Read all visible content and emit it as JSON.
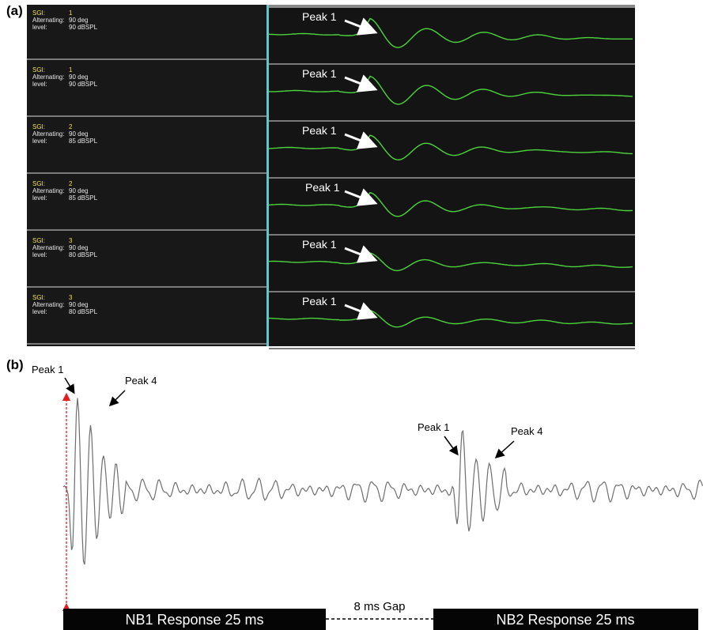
{
  "labels": {
    "a": "(a)",
    "b": "(b)"
  },
  "panel_a": {
    "rows": [
      {
        "sgi_label": "SGI:",
        "sgi": "1",
        "alt_label": "Alternating:",
        "alt": "90 deg",
        "level_label": "level:",
        "level": "90 dBSPL",
        "peak": "Peak 1"
      },
      {
        "sgi_label": "SGI:",
        "sgi": "1",
        "alt_label": "Alternating:",
        "alt": "90 deg",
        "level_label": "level:",
        "level": "90 dBSPL",
        "peak": "Peak 1"
      },
      {
        "sgi_label": "SGI:",
        "sgi": "2",
        "alt_label": "Alternating:",
        "alt": "90 deg",
        "level_label": "level:",
        "level": "85 dBSPL",
        "peak": "Peak 1"
      },
      {
        "sgi_label": "SGI:",
        "sgi": "2",
        "alt_label": "Alternating:",
        "alt": "90 deg",
        "level_label": "level:",
        "level": "85 dBSPL",
        "peak": "Peak 1"
      },
      {
        "sgi_label": "SGI:",
        "sgi": "3",
        "alt_label": "Alternating:",
        "alt": "90 deg",
        "level_label": "level:",
        "level": "80 dBSPL",
        "peak": "Peak 1"
      },
      {
        "sgi_label": "SGI:",
        "sgi": "3",
        "alt_label": "Alternating:",
        "alt": "90 deg",
        "level_label": "level:",
        "level": "80 dBSPL",
        "peak": "Peak 1"
      }
    ],
    "amplitudes": [
      1.0,
      0.95,
      0.8,
      0.75,
      0.55,
      0.55
    ]
  },
  "panel_b": {
    "nb1_peak1": "Peak 1",
    "nb1_peak4": "Peak 4",
    "nb2_peak1": "Peak 1",
    "nb2_peak4": "Peak 4",
    "nb1_bar": "NB1 Response  25 ms",
    "gap": "8 ms Gap",
    "nb2_bar": "NB2 Response  25 ms"
  },
  "colors": {
    "trace_green": "#4cd43c",
    "info_yellow": "#f4e24a",
    "divider_cyan": "#5ec7d6",
    "waveform_gray": "#707070",
    "arrow_red": "#e02020"
  }
}
